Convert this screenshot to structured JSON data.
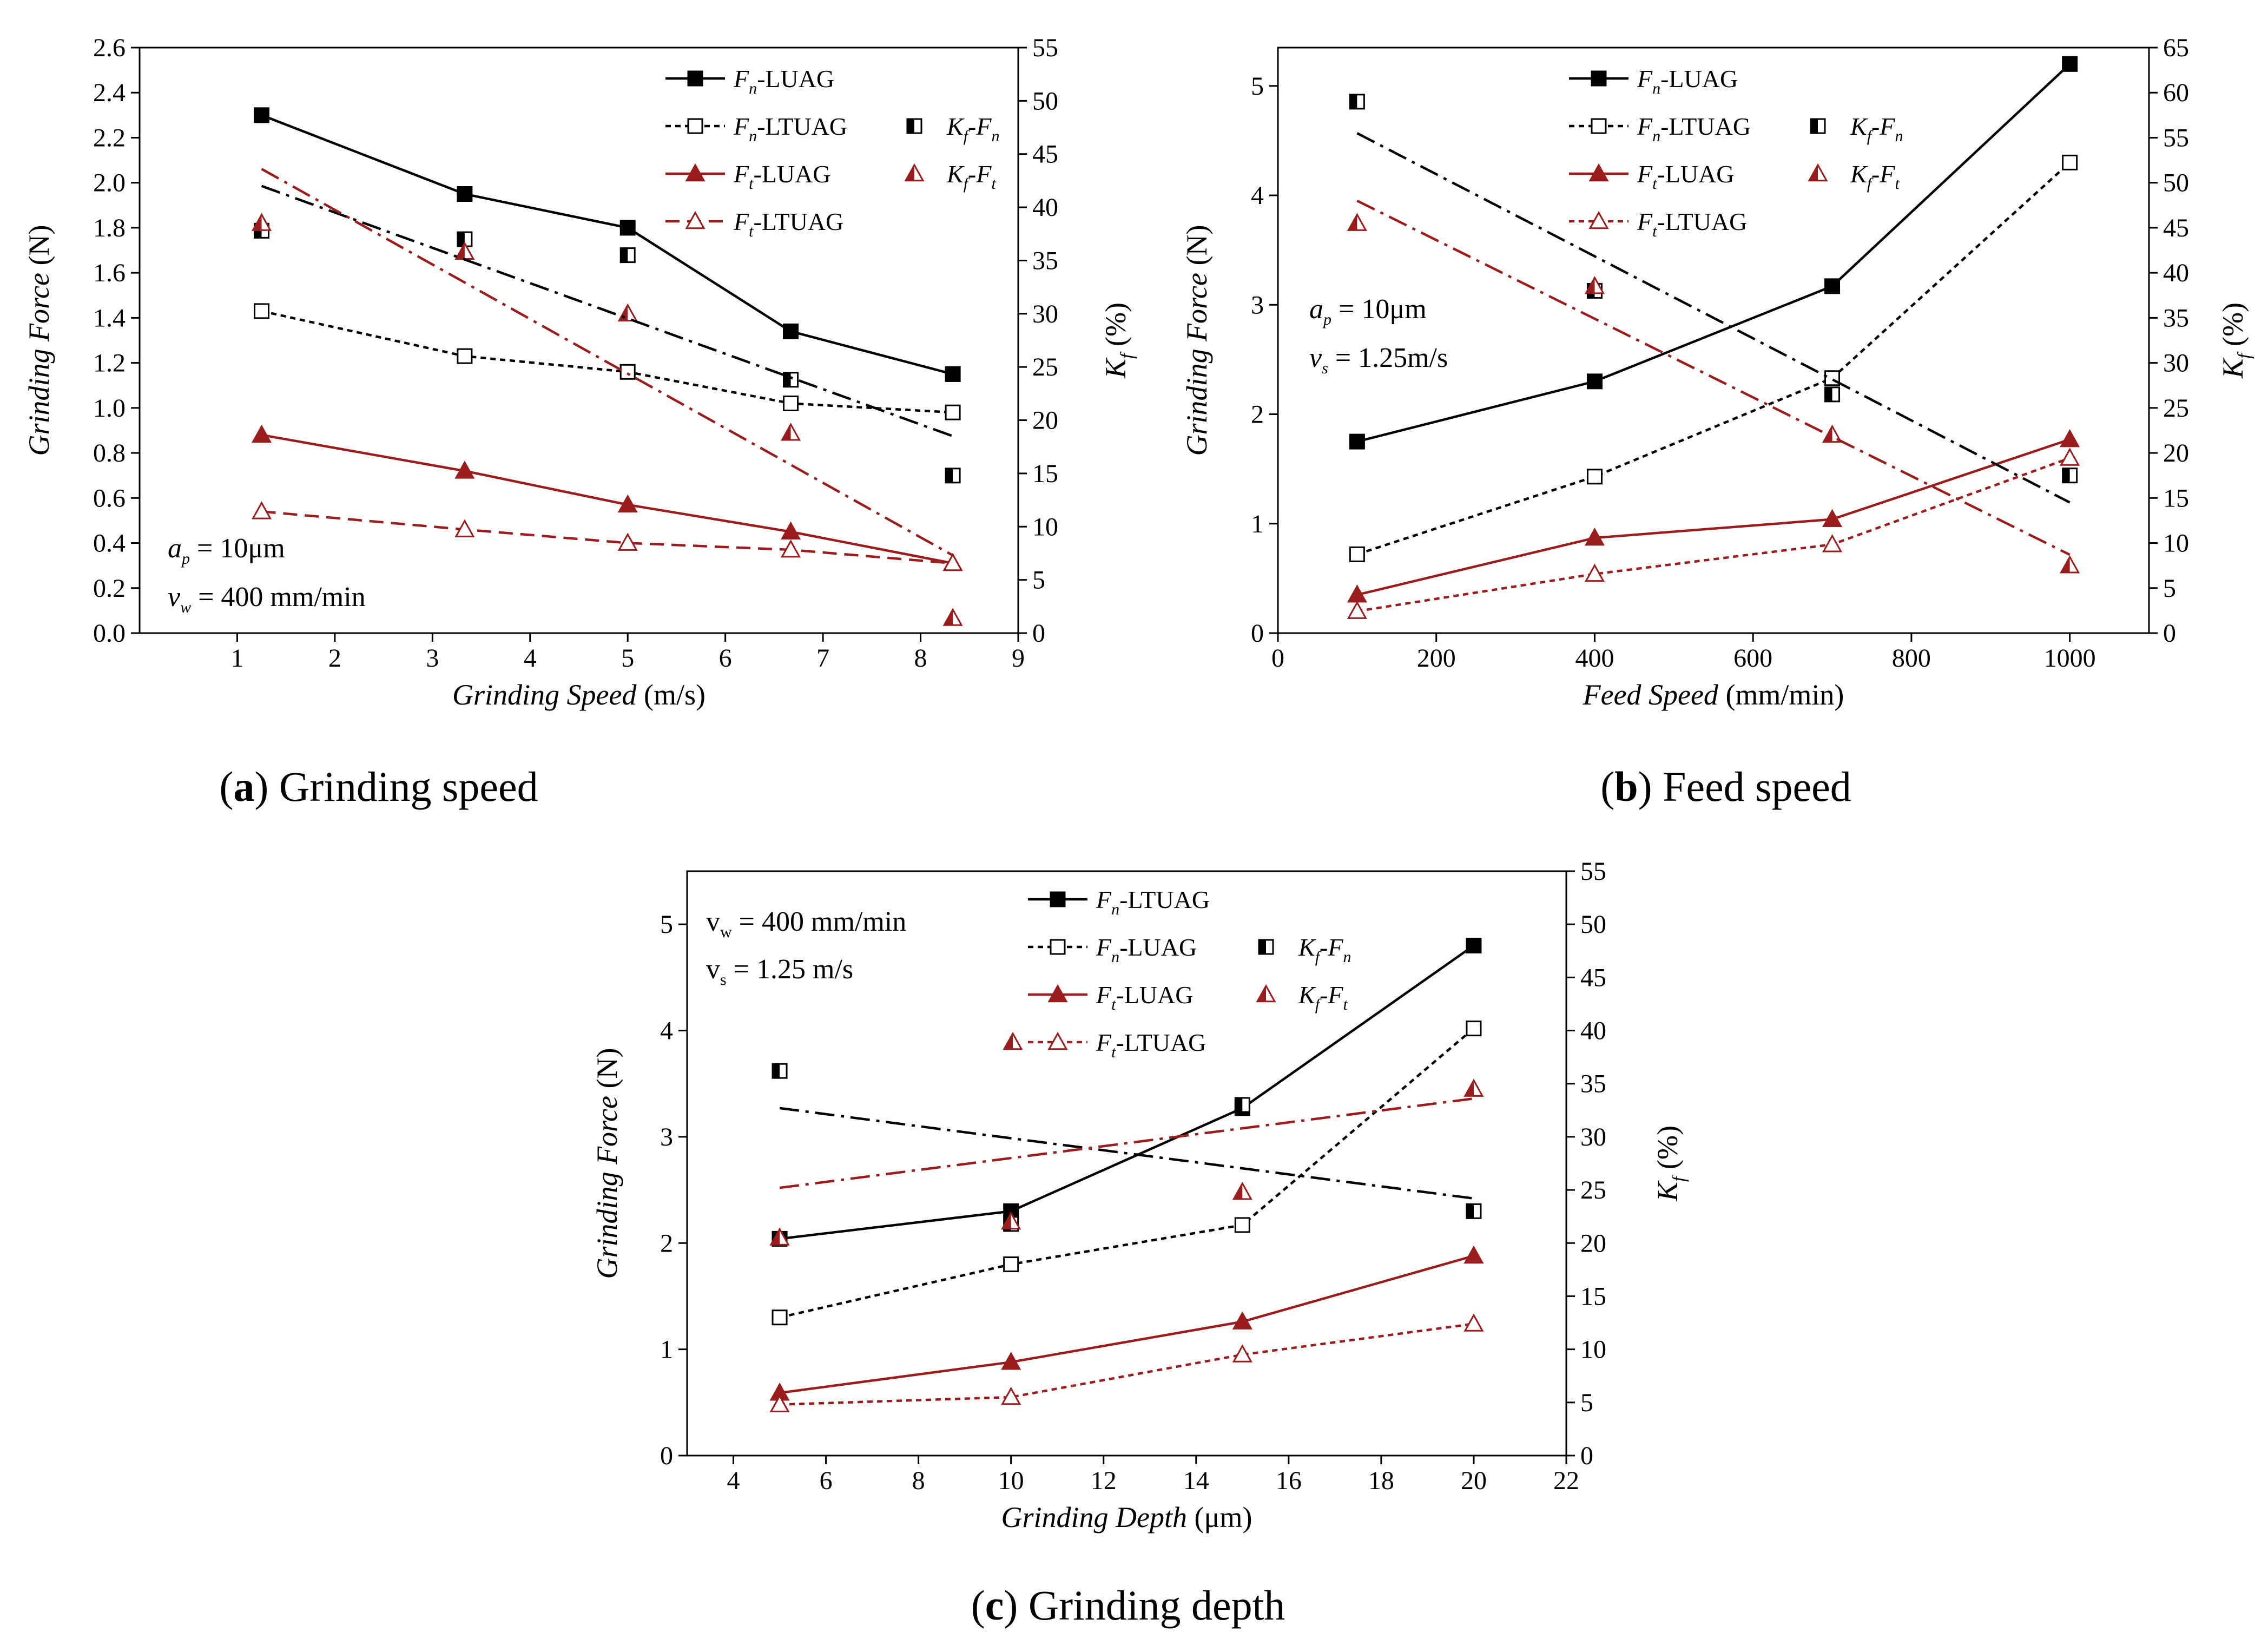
{
  "colors": {
    "black": "#000000",
    "red": "#9b1c1c"
  },
  "figure": {
    "captions": [
      {
        "label": "a",
        "text": "Grinding speed"
      },
      {
        "label": "b",
        "text": "Feed speed"
      },
      {
        "label": "c",
        "text": "Grinding depth"
      }
    ]
  },
  "chart_data": [
    {
      "id": "a",
      "type": "line",
      "xlabel_italic": "Grinding Speed",
      "xlabel_unit": " (m/s)",
      "ylabel_italic": "Grinding Force",
      "ylabel_unit": " (N)",
      "y2label": "K_f (%)",
      "xlim": [
        0,
        9
      ],
      "xticks": [
        1,
        2,
        3,
        4,
        5,
        6,
        7,
        8,
        9
      ],
      "ylim": [
        0,
        2.6
      ],
      "yticks": [
        "0.0",
        "0.2",
        "0.4",
        "0.6",
        "0.8",
        "1.0",
        "1.2",
        "1.4",
        "1.6",
        "1.8",
        "2.0",
        "2.2",
        "2.4",
        "2.6"
      ],
      "y2lim": [
        0,
        55
      ],
      "y2ticks": [
        0,
        5,
        10,
        15,
        20,
        25,
        30,
        35,
        40,
        45,
        50,
        55
      ],
      "annotations": [
        {
          "sym": "a",
          "sub": "p",
          "text": " = 10μm"
        },
        {
          "sym": "v",
          "sub": "w",
          "text": " = 400 mm/min"
        }
      ],
      "series": [
        {
          "name": "Fn-LUAG",
          "label_sym": "F",
          "label_sub": "n",
          "label_rest": "-LUAG",
          "axis": "left",
          "color": "black",
          "dash": "solid",
          "marker": "square-filled",
          "x": [
            1.25,
            3.33,
            5.0,
            6.67,
            8.33
          ],
          "y": [
            2.3,
            1.95,
            1.8,
            1.34,
            1.15
          ]
        },
        {
          "name": "Fn-LTUAG",
          "label_sym": "F",
          "label_sub": "n",
          "label_rest": "-LTUAG",
          "axis": "left",
          "color": "black",
          "dash": "dotted",
          "marker": "square-open",
          "x": [
            1.25,
            3.33,
            5.0,
            6.67,
            8.33
          ],
          "y": [
            1.43,
            1.23,
            1.16,
            1.02,
            0.98
          ]
        },
        {
          "name": "Ft-LUAG",
          "label_sym": "F",
          "label_sub": "t",
          "label_rest": "-LUAG",
          "axis": "left",
          "color": "red",
          "dash": "solid",
          "marker": "triangle-filled",
          "x": [
            1.25,
            3.33,
            5.0,
            6.67,
            8.33
          ],
          "y": [
            0.88,
            0.72,
            0.57,
            0.45,
            0.31
          ]
        },
        {
          "name": "Ft-LTUAG",
          "label_sym": "F",
          "label_sub": "t",
          "label_rest": "-LTUAG",
          "axis": "left",
          "color": "red",
          "dash": "dashed",
          "marker": "triangle-open",
          "x": [
            1.25,
            3.33,
            5.0,
            6.67,
            8.33
          ],
          "y": [
            0.54,
            0.46,
            0.4,
            0.37,
            0.31
          ]
        },
        {
          "name": "Kf-Fn",
          "label_sym": "K",
          "label_sub": "f",
          "label_rest": "-",
          "label_sym2": "F",
          "label_sub2": "n",
          "axis": "right",
          "color": "black",
          "dash": "none",
          "marker": "square-half",
          "x": [
            1.25,
            3.33,
            5.0,
            6.67,
            8.33
          ],
          "y": [
            37.8,
            37.0,
            35.5,
            23.8,
            14.8
          ]
        },
        {
          "name": "Kf-Ft",
          "label_sym": "K",
          "label_sub": "f",
          "label_rest": "-",
          "label_sym2": "F",
          "label_sub2": "t",
          "axis": "right",
          "color": "red",
          "dash": "none",
          "marker": "triangle-half",
          "x": [
            1.25,
            3.33,
            5.0,
            6.67,
            8.33
          ],
          "y": [
            38.5,
            35.8,
            30.0,
            18.8,
            1.4
          ]
        },
        {
          "name": "Kf-Fn fit",
          "axis": "right",
          "color": "black",
          "dash": "dashdot",
          "marker": "none",
          "x": [
            1.25,
            8.33
          ],
          "y": [
            42.0,
            18.5
          ]
        },
        {
          "name": "Kf-Ft fit",
          "axis": "right",
          "color": "red",
          "dash": "dashdot",
          "marker": "none",
          "x": [
            1.25,
            8.33
          ],
          "y": [
            43.6,
            7.3
          ]
        }
      ],
      "legend": [
        "Fn-LUAG",
        "Fn-LTUAG",
        "Ft-LUAG",
        "Ft-LTUAG",
        "Kf-Fn",
        "Kf-Ft"
      ]
    },
    {
      "id": "b",
      "type": "line",
      "xlabel_italic": "Feed Speed",
      "xlabel_unit": " (mm/min)",
      "ylabel_italic": "Grinding Force",
      "ylabel_unit": " (N)",
      "y2label": "K_f (%)",
      "xlim": [
        0,
        1100
      ],
      "xticks": [
        0,
        200,
        400,
        600,
        800,
        1000
      ],
      "ylim": [
        0,
        5.35
      ],
      "yticks": [
        "0",
        "1",
        "2",
        "3",
        "4",
        "5"
      ],
      "y2lim": [
        0,
        65
      ],
      "y2ticks": [
        0,
        5,
        10,
        15,
        20,
        25,
        30,
        35,
        40,
        45,
        50,
        55,
        60,
        65
      ],
      "annotations": [
        {
          "sym": "a",
          "sub": "p",
          "text": " = 10μm"
        },
        {
          "sym": "v",
          "sub": "s",
          "text": " = 1.25m/s"
        }
      ],
      "series": [
        {
          "name": "Fn-LUAG",
          "label_sym": "F",
          "label_sub": "n",
          "label_rest": "-LUAG",
          "axis": "left",
          "color": "black",
          "dash": "solid",
          "marker": "square-filled",
          "x": [
            100,
            400,
            700,
            1000
          ],
          "y": [
            1.75,
            2.3,
            3.17,
            5.2
          ]
        },
        {
          "name": "Fn-LTUAG",
          "label_sym": "F",
          "label_sub": "n",
          "label_rest": "-LTUAG",
          "axis": "left",
          "color": "black",
          "dash": "dotted",
          "marker": "square-open",
          "x": [
            100,
            400,
            700,
            1000
          ],
          "y": [
            0.72,
            1.43,
            2.33,
            4.3
          ]
        },
        {
          "name": "Ft-LUAG",
          "label_sym": "F",
          "label_sub": "t",
          "label_rest": "-LUAG",
          "axis": "left",
          "color": "red",
          "dash": "solid",
          "marker": "triangle-filled",
          "x": [
            100,
            400,
            700,
            1000
          ],
          "y": [
            0.35,
            0.87,
            1.04,
            1.77
          ]
        },
        {
          "name": "Ft-LTUAG",
          "label_sym": "F",
          "label_sub": "t",
          "label_rest": "-LTUAG",
          "axis": "left",
          "color": "red",
          "dash": "dotted",
          "marker": "triangle-open",
          "x": [
            100,
            400,
            700,
            1000
          ],
          "y": [
            0.2,
            0.54,
            0.81,
            1.6
          ]
        },
        {
          "name": "Kf-Fn",
          "label_sym": "K",
          "label_sub": "f",
          "label_rest": "-",
          "label_sym2": "F",
          "label_sub2": "n",
          "axis": "right",
          "color": "black",
          "dash": "none",
          "marker": "square-half",
          "x": [
            100,
            400,
            700,
            1000
          ],
          "y": [
            59.0,
            38.0,
            26.5,
            17.5
          ]
        },
        {
          "name": "Kf-Ft",
          "label_sym": "K",
          "label_sub": "f",
          "label_rest": "-",
          "label_sym2": "F",
          "label_sub2": "t",
          "axis": "right",
          "color": "red",
          "dash": "none",
          "marker": "triangle-half",
          "x": [
            100,
            400,
            700,
            1000
          ],
          "y": [
            45.5,
            38.5,
            22.0,
            7.5
          ]
        },
        {
          "name": "Kf-Fn fit",
          "axis": "right",
          "color": "black",
          "dash": "dashdot",
          "marker": "none",
          "x": [
            100,
            1000
          ],
          "y": [
            55.5,
            14.5
          ]
        },
        {
          "name": "Kf-Ft fit",
          "axis": "right",
          "color": "red",
          "dash": "dashdot",
          "marker": "none",
          "x": [
            100,
            1000
          ],
          "y": [
            48.0,
            8.7
          ]
        }
      ],
      "legend": [
        "Fn-LUAG",
        "Fn-LTUAG",
        "Ft-LUAG",
        "Ft-LTUAG",
        "Kf-Fn",
        "Kf-Ft"
      ]
    },
    {
      "id": "c",
      "type": "line",
      "xlabel_italic": "Grinding Depth",
      "xlabel_unit": " (μm)",
      "ylabel_italic": "Grinding Force",
      "ylabel_unit": " (N)",
      "y2label": "K_f (%)",
      "xlim": [
        3,
        22
      ],
      "xticks": [
        4,
        6,
        8,
        10,
        12,
        14,
        16,
        18,
        20,
        22
      ],
      "ylim": [
        0,
        5.5
      ],
      "yticks": [
        "0",
        "1",
        "2",
        "3",
        "4",
        "5"
      ],
      "y2lim": [
        0,
        55
      ],
      "y2ticks": [
        0,
        5,
        10,
        15,
        20,
        25,
        30,
        35,
        40,
        45,
        50,
        55
      ],
      "annotations": [
        {
          "sym": "v",
          "sub": "w",
          "text": " = 400 mm/min",
          "upright": true
        },
        {
          "sym": "v",
          "sub": "s",
          "text": " = 1.25 m/s",
          "upright": true
        }
      ],
      "series": [
        {
          "name": "Fn-LTUAG",
          "label_sym": "F",
          "label_sub": "n",
          "label_rest": "-LTUAG",
          "axis": "left",
          "color": "black",
          "dash": "solid",
          "marker": "square-filled",
          "x": [
            5,
            10,
            15,
            20
          ],
          "y": [
            2.04,
            2.3,
            3.27,
            4.8
          ]
        },
        {
          "name": "Fn-LUAG",
          "label_sym": "F",
          "label_sub": "n",
          "label_rest": "-LUAG",
          "axis": "left",
          "color": "black",
          "dash": "dotted",
          "marker": "square-open",
          "x": [
            5,
            10,
            15,
            20
          ],
          "y": [
            1.3,
            1.8,
            2.17,
            4.02
          ]
        },
        {
          "name": "Ft-LUAG",
          "label_sym": "F",
          "label_sub": "t",
          "label_rest": "-LUAG",
          "axis": "left",
          "color": "red",
          "dash": "solid",
          "marker": "triangle-filled",
          "x": [
            5,
            10,
            15,
            20
          ],
          "y": [
            0.59,
            0.88,
            1.26,
            1.88
          ]
        },
        {
          "name": "Ft-LTUAG",
          "label_sym": "F",
          "label_sub": "t",
          "label_rest": "-LTUAG",
          "axis": "left",
          "color": "red",
          "dash": "dotted",
          "marker": "triangle-open",
          "x": [
            5,
            10,
            15,
            20
          ],
          "y": [
            0.48,
            0.55,
            0.95,
            1.24
          ]
        },
        {
          "name": "Kf-Fn",
          "label_sym": "K",
          "label_sub": "f",
          "label_rest": "-",
          "label_sym2": "F",
          "label_sub2": "n",
          "axis": "right",
          "color": "black",
          "dash": "none",
          "marker": "square-half",
          "x": [
            5,
            10,
            15,
            20
          ],
          "y": [
            36.2,
            21.8,
            33.0,
            23.0
          ]
        },
        {
          "name": "Kf-Ft",
          "label_sym": "K",
          "label_sub": "f",
          "label_rest": "-",
          "label_sym2": "F",
          "label_sub2": "t",
          "axis": "right",
          "color": "red",
          "dash": "none",
          "marker": "triangle-half",
          "x": [
            5,
            10,
            15,
            20
          ],
          "y": [
            20.5,
            22.0,
            24.8,
            34.5
          ]
        },
        {
          "name": "Kf-Fn fit",
          "axis": "right",
          "color": "black",
          "dash": "dashdot",
          "marker": "none",
          "x": [
            5,
            20
          ],
          "y": [
            32.7,
            24.2
          ]
        },
        {
          "name": "Kf-Ft fit",
          "axis": "right",
          "color": "red",
          "dash": "dashdot",
          "marker": "none",
          "x": [
            5,
            20
          ],
          "y": [
            25.2,
            33.6
          ]
        }
      ],
      "legend": [
        "Fn-LTUAG",
        "Fn-LUAG",
        "Kf-Fn",
        "Ft-LUAG",
        "Kf-Ft",
        "Ft-LTUAG"
      ]
    }
  ]
}
